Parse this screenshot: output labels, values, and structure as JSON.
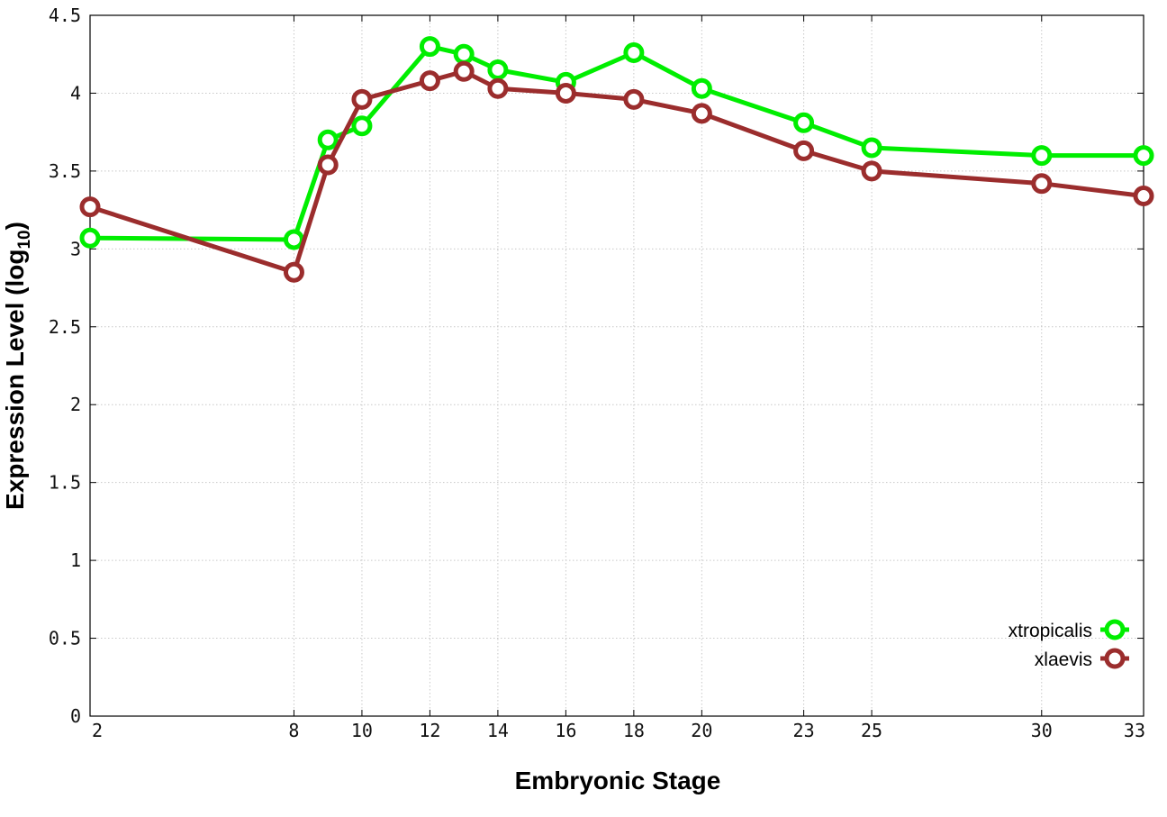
{
  "chart_data": {
    "type": "line",
    "xlabel": "Embryonic Stage",
    "ylabel_main": "Expression Level (log",
    "ylabel_sub": "10",
    "ylabel_close": ")",
    "x_ticks": [
      2,
      8,
      10,
      12,
      14,
      16,
      18,
      20,
      23,
      25,
      30,
      33
    ],
    "y_ticks": [
      "0",
      "0.5",
      "1",
      "1.5",
      "2",
      "2.5",
      "3",
      "3.5",
      "4",
      "4.5"
    ],
    "xlim": [
      2,
      33
    ],
    "ylim": [
      0,
      4.5
    ],
    "grid": true,
    "legend_position": "bottom-right",
    "series": [
      {
        "name": "xtropicalis",
        "color": "#00ee00",
        "points": [
          [
            2,
            3.07
          ],
          [
            8,
            3.06
          ],
          [
            9,
            3.7
          ],
          [
            10,
            3.79
          ],
          [
            12,
            4.3
          ],
          [
            13,
            4.25
          ],
          [
            14,
            4.15
          ],
          [
            16,
            4.07
          ],
          [
            18,
            4.26
          ],
          [
            20,
            4.03
          ],
          [
            23,
            3.81
          ],
          [
            25,
            3.65
          ],
          [
            30,
            3.6
          ],
          [
            33,
            3.6
          ]
        ]
      },
      {
        "name": "xlaevis",
        "color": "#9b2d2d",
        "points": [
          [
            2,
            3.27
          ],
          [
            8,
            2.85
          ],
          [
            9,
            3.54
          ],
          [
            10,
            3.96
          ],
          [
            12,
            4.08
          ],
          [
            13,
            4.14
          ],
          [
            14,
            4.03
          ],
          [
            16,
            4.0
          ],
          [
            18,
            3.96
          ],
          [
            20,
            3.87
          ],
          [
            23,
            3.63
          ],
          [
            25,
            3.5
          ],
          [
            30,
            3.42
          ],
          [
            33,
            3.34
          ]
        ]
      }
    ]
  }
}
